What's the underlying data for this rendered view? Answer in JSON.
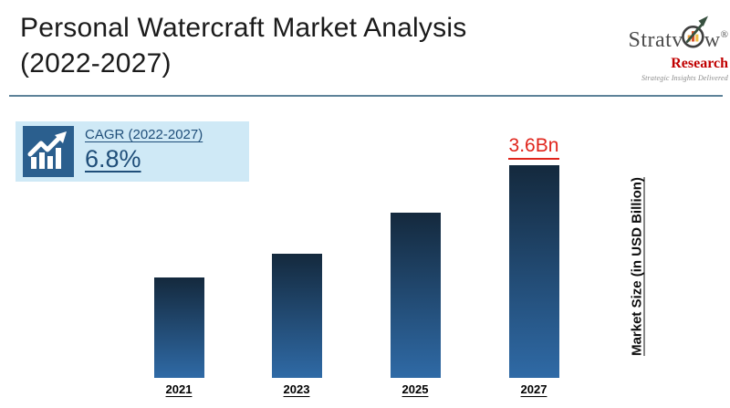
{
  "page": {
    "title_line1": "Personal Watercraft Market Analysis",
    "title_line2": "(2022-2027)"
  },
  "cagr_box": {
    "label": "CAGR (2022-2027)",
    "value": "6.8%"
  },
  "chart_data": {
    "type": "bar",
    "title": "Personal Watercraft Market Analysis (2022-2027)",
    "categories": [
      "2021",
      "2023",
      "2025",
      "2027"
    ],
    "values": [
      1.7,
      2.1,
      2.8,
      3.6
    ],
    "data_labels": [
      null,
      null,
      null,
      "3.6Bn"
    ],
    "xlabel": "",
    "ylabel": "Market Size (in USD Billion)",
    "ylim": [
      0,
      3.6
    ],
    "grid": false,
    "legend": null,
    "bar_color_top": "#14293d",
    "bar_color_bottom": "#2f6aa6",
    "data_label_color": "#e0241b"
  },
  "logo": {
    "brand_left": "Stratv",
    "brand_right": "w",
    "registered": "®",
    "sub_brand": "Research",
    "tagline": "Strategic Insights Delivered"
  }
}
